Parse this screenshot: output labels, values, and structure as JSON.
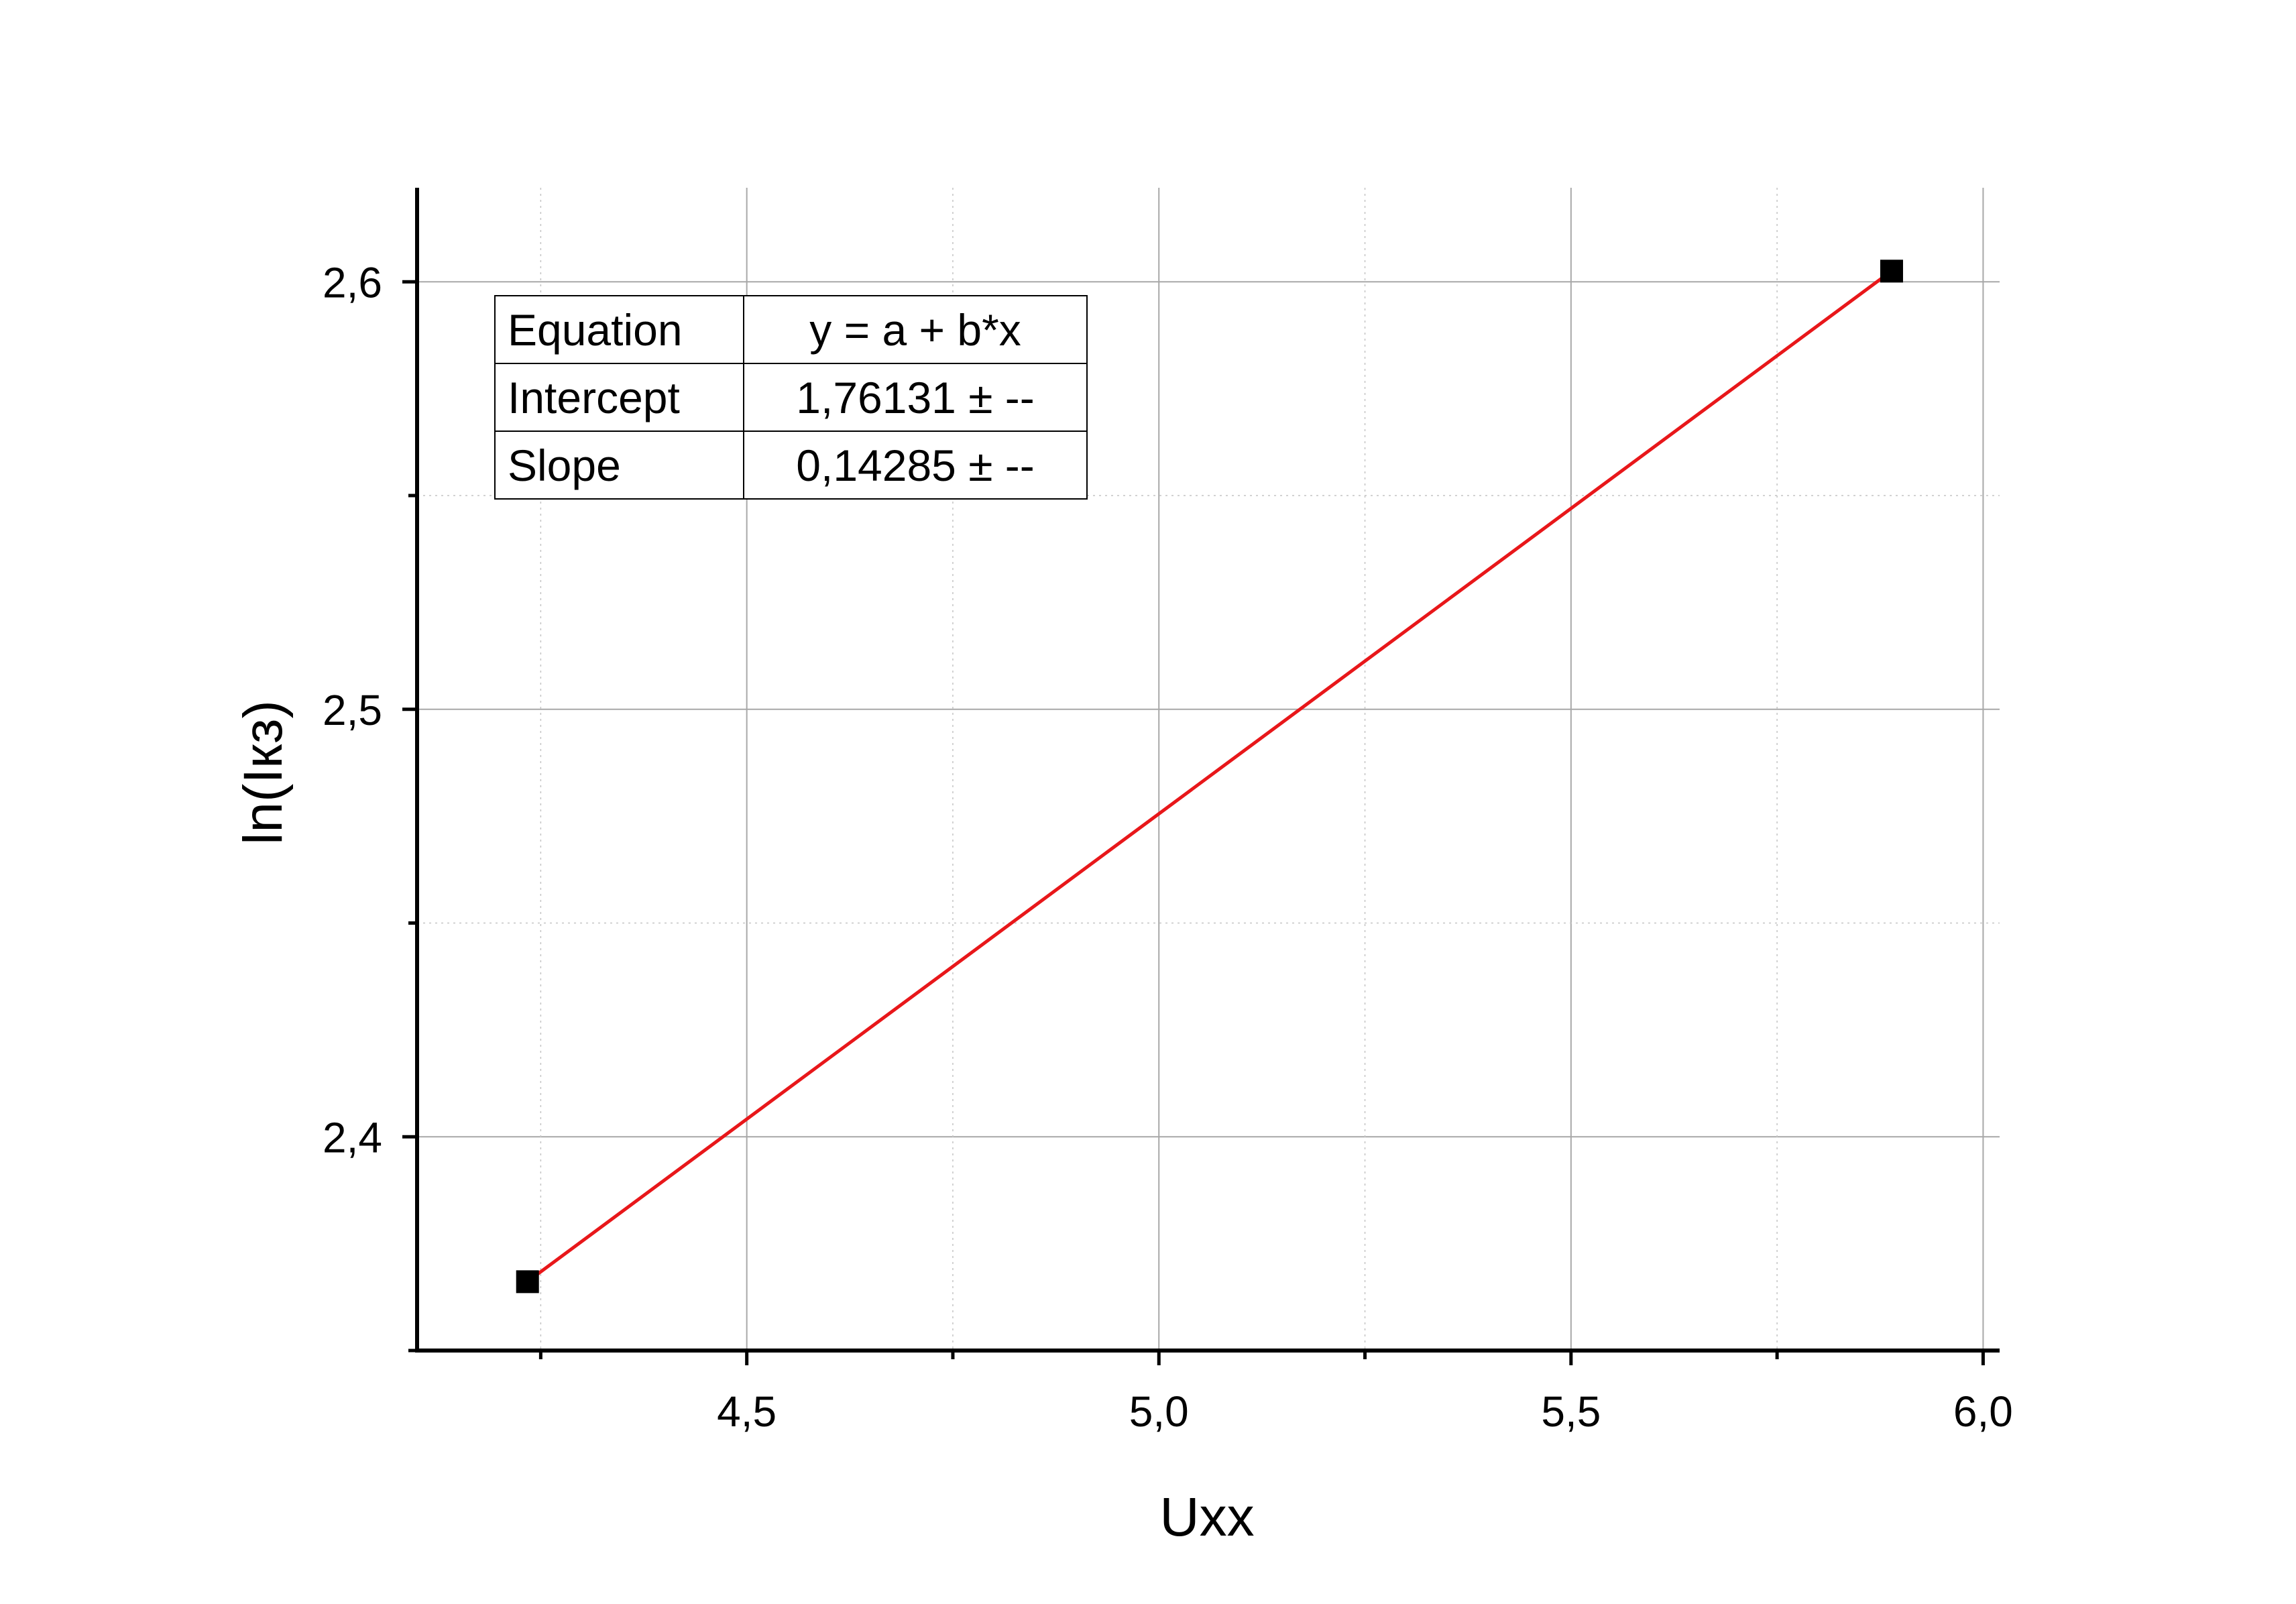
{
  "chart_data": {
    "type": "scatter",
    "title": "",
    "xlabel": "Uxx",
    "ylabel": "ln(Iкз)",
    "xlim": [
      4.1,
      6.02
    ],
    "ylim": [
      2.35,
      2.622
    ],
    "xticks": [
      4.5,
      5.0,
      5.5,
      6.0
    ],
    "xtick_labels": [
      "4,5",
      "5,0",
      "5,5",
      "6,0"
    ],
    "xminor": [
      4.25,
      4.75,
      5.25,
      5.75
    ],
    "yticks": [
      2.4,
      2.5,
      2.6
    ],
    "ytick_labels": [
      "2,4",
      "2,5",
      "2,6"
    ],
    "yminor": [
      2.35,
      2.45,
      2.55
    ],
    "grid": true,
    "series": [
      {
        "x": [
          4.234,
          5.889
        ],
        "y": [
          2.3661,
          2.6025
        ],
        "marker": "square",
        "color": "#000000"
      }
    ],
    "fit": {
      "intercept": 1.76131,
      "slope": 0.14285,
      "x_range": [
        4.234,
        5.889
      ],
      "color": "#e8171a"
    },
    "fit_table": {
      "rows": [
        {
          "key": "Equation",
          "value": "y = a + b*x"
        },
        {
          "key": "Intercept",
          "value": "1,76131 ± --"
        },
        {
          "key": "Slope",
          "value": "0,14285 ± --"
        }
      ]
    }
  }
}
